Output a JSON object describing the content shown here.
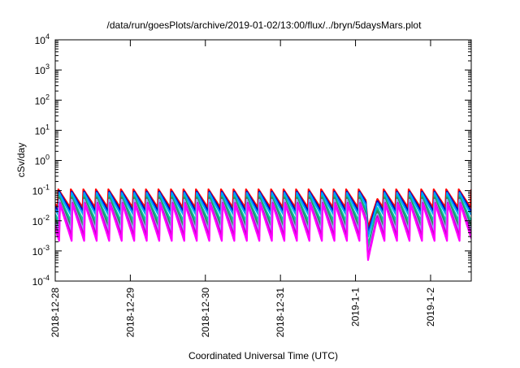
{
  "chart_data": {
    "type": "line",
    "title": "/data/run/goesPlots/archive/2019-01-02/13:00/flux/../bryn/5daysMars.plot",
    "xlabel": "Coordinated Universal Time (UTC)",
    "ylabel": "cSv/day",
    "yscale": "log",
    "ylim_exponents": [
      -4,
      4
    ],
    "xlim": [
      "2018-12-28",
      "2019-01-02T13:00"
    ],
    "x_tick_labels": [
      "2018-12-28",
      "2018-12-29",
      "2018-12-30",
      "2018-12-31",
      "2019-1-1",
      "2019-1-2"
    ],
    "y_tick_labels": [
      {
        "base": "10",
        "exp": "-4"
      },
      {
        "base": "10",
        "exp": "-3"
      },
      {
        "base": "10",
        "exp": "-2"
      },
      {
        "base": "10",
        "exp": "-1"
      },
      {
        "base": "10",
        "exp": "0"
      },
      {
        "base": "10",
        "exp": "1"
      },
      {
        "base": "10",
        "exp": "2"
      },
      {
        "base": "10",
        "exp": "3"
      },
      {
        "base": "10",
        "exp": "4"
      }
    ],
    "grid": false,
    "legend": "none",
    "sawtooth_period_hours": 4,
    "dip_center": "2019-01-01T04:00",
    "series": [
      {
        "color": "#ff0000",
        "peak": 0.11,
        "trough": 0.025,
        "dip_min": 0.006
      },
      {
        "color": "#0000c8",
        "peak": 0.1,
        "trough": 0.02,
        "dip_min": 0.004
      },
      {
        "color": "#00a0ff",
        "peak": 0.09,
        "trough": 0.015,
        "dip_min": 0.003
      },
      {
        "color": "#00c8a0",
        "peak": 0.07,
        "trough": 0.009,
        "dip_min": 0.0015
      },
      {
        "color": "#2e8b57",
        "peak": 0.06,
        "trough": 0.006,
        "dip_min": 0.001
      },
      {
        "color": "#a0a0ff",
        "peak": 0.05,
        "trough": 0.004,
        "dip_min": 0.0008
      },
      {
        "color": "#c800c8",
        "peak": 0.045,
        "trough": 0.003,
        "dip_min": 0.0006
      },
      {
        "color": "#ff00ff",
        "peak": 0.04,
        "trough": 0.002,
        "dip_min": 0.0005
      }
    ]
  }
}
